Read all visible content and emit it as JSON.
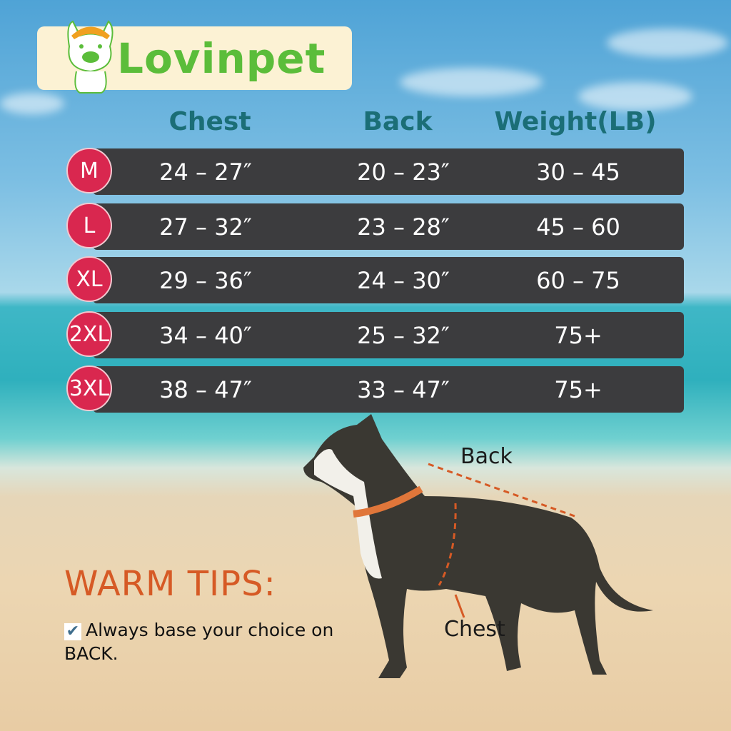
{
  "brand": {
    "name": "Lovinpet",
    "colors": {
      "green": "#5bbd3a",
      "orange": "#f0a020"
    }
  },
  "table": {
    "headers": [
      "Chest",
      "Back",
      "Weight(LB)"
    ],
    "rows": [
      {
        "size": "M",
        "chest": "24 – 27″",
        "back": "20 – 23″",
        "weight": "30 – 45"
      },
      {
        "size": "L",
        "chest": "27 – 32″",
        "back": "23 – 28″",
        "weight": "45 – 60"
      },
      {
        "size": "XL",
        "chest": "29 – 36″",
        "back": "24 – 30″",
        "weight": "60 – 75"
      },
      {
        "size": "2XL",
        "chest": "34 – 40″",
        "back": "25 – 32″",
        "weight": "75+"
      },
      {
        "size": "3XL",
        "chest": "38 – 47″",
        "back": "33 – 47″",
        "weight": "75+"
      }
    ],
    "colors": {
      "header": "#1b6e76",
      "row": "#3c3c3e",
      "badge": "#d9274f"
    }
  },
  "diagram": {
    "back_label": "Back",
    "chest_label": "Chest",
    "measure_color": "#d65a25"
  },
  "tips": {
    "title": "WARM TIPS:",
    "check_icon": "check-icon",
    "text": "Always base your choice on BACK."
  }
}
